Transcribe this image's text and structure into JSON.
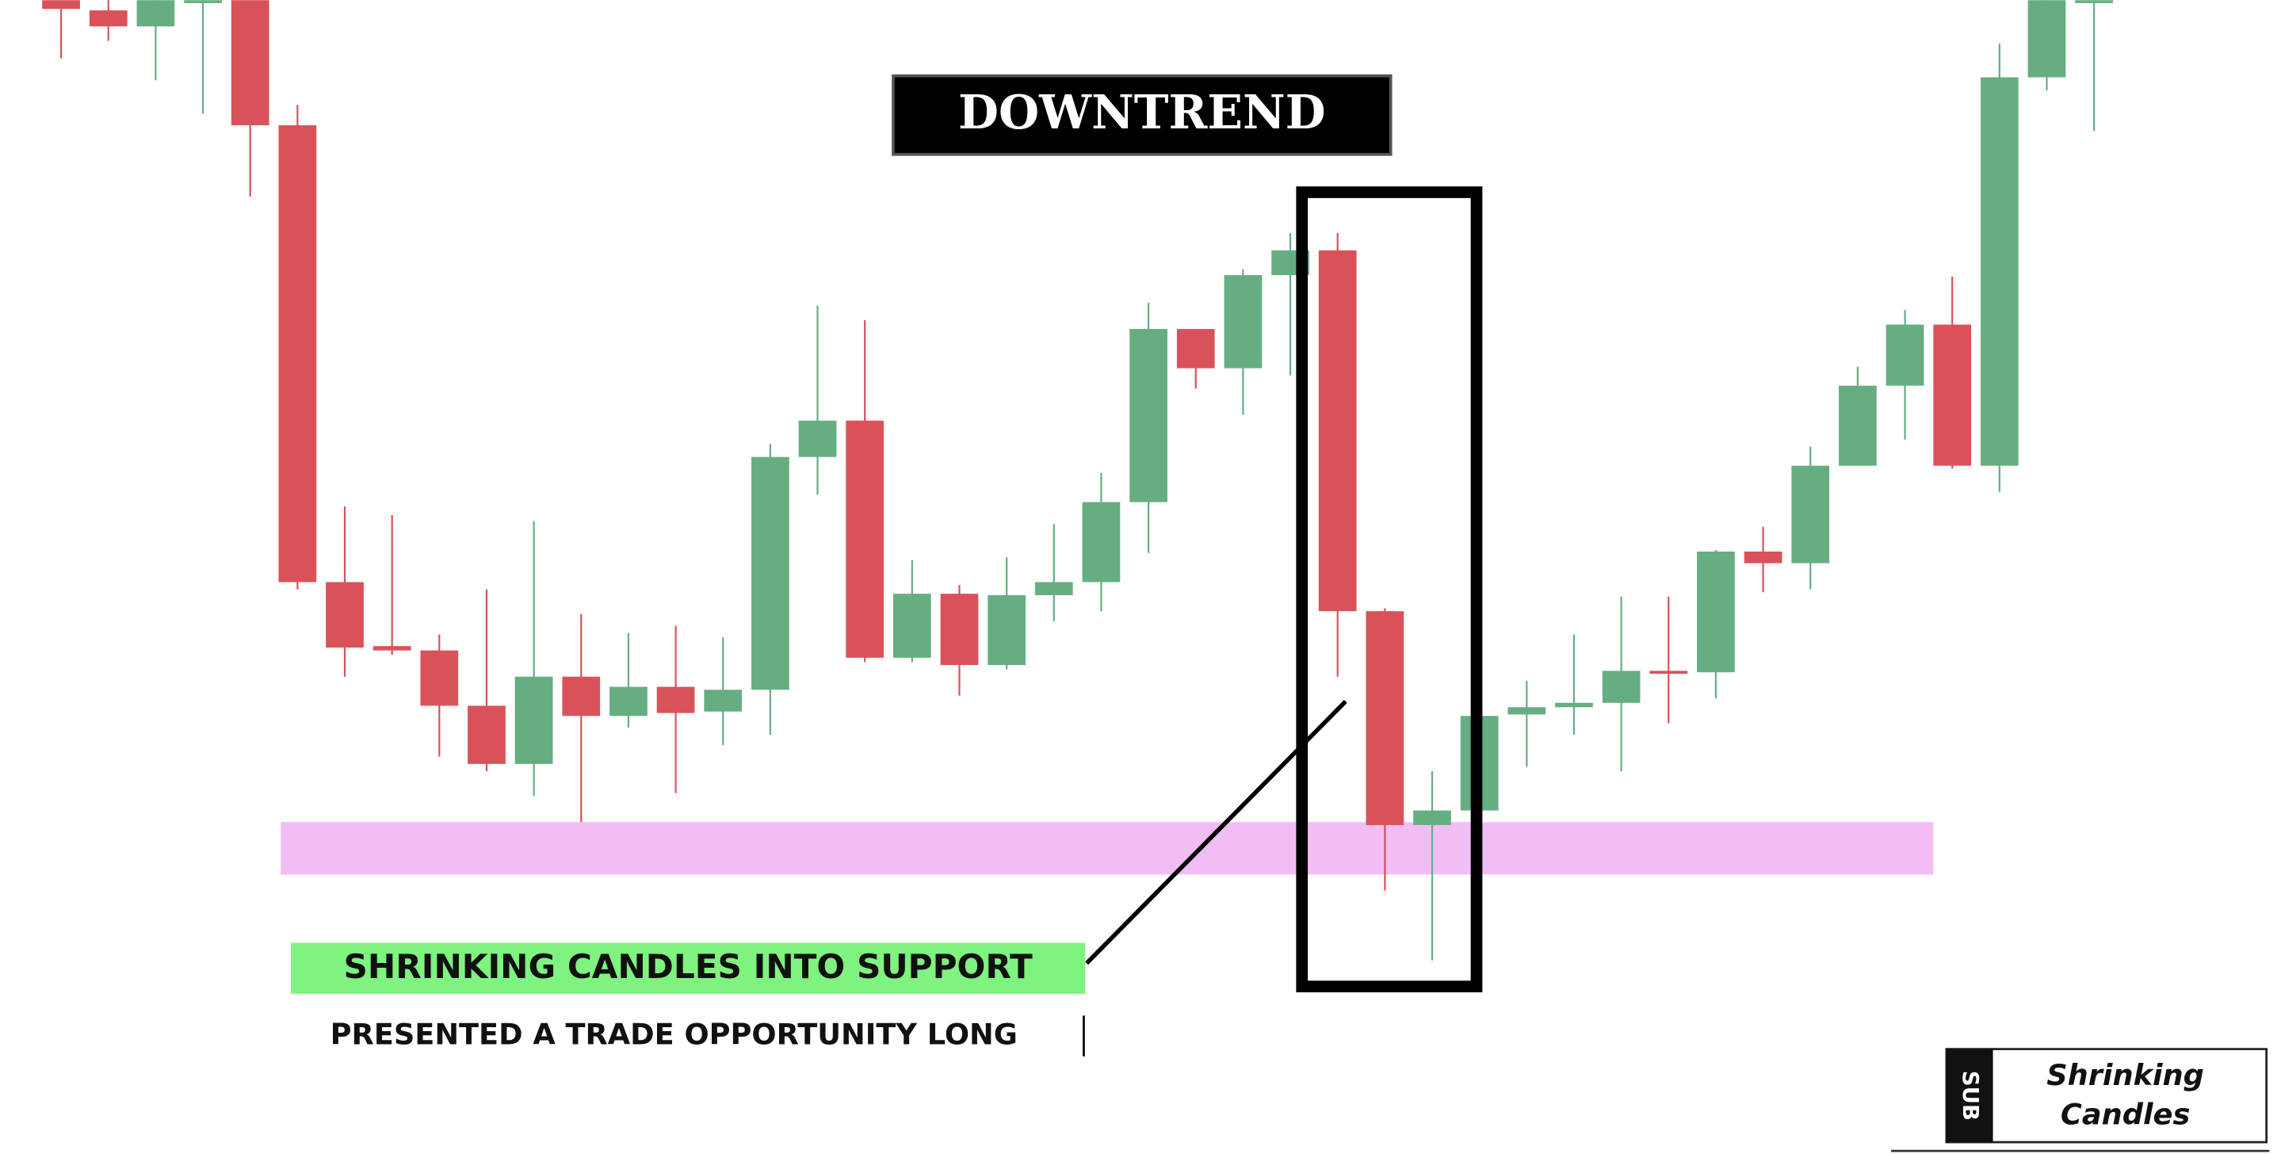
{
  "chart_data": {
    "type": "candlestick",
    "title": "DOWNTREND",
    "annotations": [
      "SHRINKING CANDLES INTO SUPPORT",
      "PRESENTED A TRADE OPPORTUNITY LONG"
    ],
    "up_color": "#66ae82",
    "down_color": "#d9525a",
    "support_color": "#f2bdf5",
    "ylim": [
      0,
      793
    ],
    "support_zone": [
      192,
      228
    ],
    "open": [
      793,
      786,
      775,
      793,
      793,
      707,
      393,
      349,
      346,
      308,
      268,
      328,
      301,
      321,
      304,
      319,
      479,
      504,
      341,
      385,
      336,
      384,
      393,
      448,
      567,
      540,
      604,
      621,
      373,
      226,
      236,
      302,
      307,
      310,
      332,
      331,
      414,
      406,
      473,
      528,
      570,
      473,
      740,
      793
    ],
    "high": [
      793,
      793,
      793,
      793,
      793,
      721,
      445,
      439,
      357,
      388,
      435,
      371,
      358,
      363,
      355,
      488,
      583,
      573,
      408,
      391,
      410,
      433,
      468,
      585,
      567,
      608,
      633,
      633,
      375,
      263,
      333,
      325,
      357,
      383,
      383,
      415,
      431,
      486,
      541,
      580,
      603,
      763,
      793,
      793
    ],
    "low": [
      753,
      765,
      738,
      715,
      658,
      388,
      328,
      343,
      273,
      263,
      246,
      228,
      293,
      248,
      281,
      288,
      453,
      338,
      338,
      315,
      333,
      366,
      373,
      413,
      526,
      508,
      535,
      328,
      181,
      133,
      233,
      266,
      288,
      263,
      296,
      313,
      386,
      388,
      473,
      491,
      471,
      455,
      731,
      703
    ],
    "close": [
      787,
      775,
      793,
      793,
      707,
      393,
      348,
      346,
      308,
      268,
      328,
      301,
      321,
      303,
      319,
      479,
      504,
      341,
      385,
      336,
      384,
      393,
      448,
      567,
      540,
      604,
      621,
      373,
      226,
      236,
      301,
      307,
      310,
      332,
      330,
      414,
      406,
      473,
      528,
      570,
      473,
      740,
      793,
      793
    ]
  },
  "logo": {
    "mark": "SUB",
    "lines": [
      "Shrinking",
      "Candles"
    ]
  }
}
